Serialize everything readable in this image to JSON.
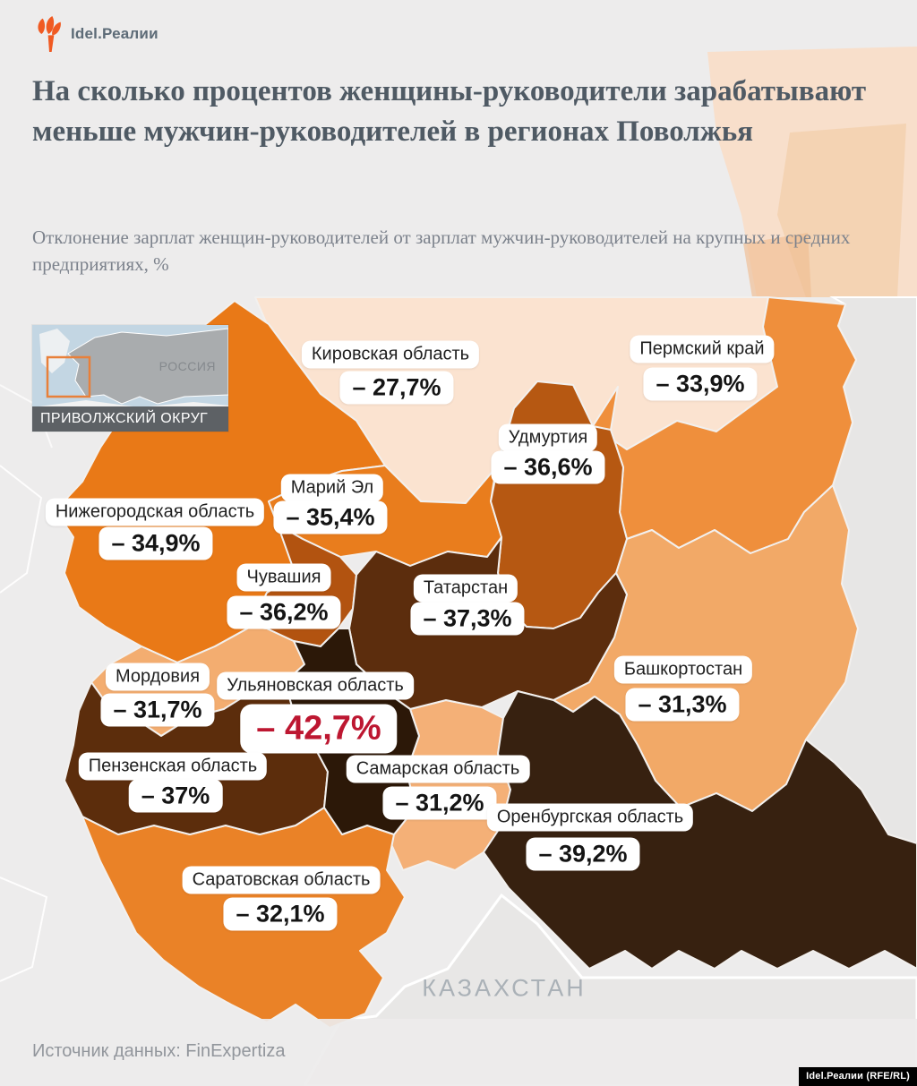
{
  "brand": {
    "logo_text": "Idel.Реалии",
    "torch_color": "#f05a22"
  },
  "header": {
    "title": "На сколько процентов женщины-руководители зарабатывают меньше мужчин-руководителей в регионах Поволжья",
    "subtitle": "Отклонение зарплат женщин-руководителей от зарплат мужчин-руководителей на крупных и средних предприятиях, %"
  },
  "inset_map": {
    "country_label": "РОССИЯ",
    "caption": "ПРИВОЛЖСКИЙ ОКРУГ",
    "highlight_box_color": "#e8803a"
  },
  "map": {
    "neighbor_label": "КАЗАХСТАН",
    "background_color": "#edecec",
    "neighbor_fill": "#e7e6e5",
    "regions": [
      {
        "id": "kirov",
        "name": "Кировская область",
        "value": "– 27,7%",
        "color": "#fbe3d0"
      },
      {
        "id": "perm",
        "name": "Пермский край",
        "value": "– 33,9%",
        "color": "#ef8f3c"
      },
      {
        "id": "udmurtia",
        "name": "Удмуртия",
        "value": "– 36,6%",
        "color": "#b65812"
      },
      {
        "id": "mariel",
        "name": "Марий Эл",
        "value": "– 35,4%",
        "color": "#e97d1d"
      },
      {
        "id": "nizhny",
        "name": "Нижегородская область",
        "value": "– 34,9%",
        "color": "#e97917"
      },
      {
        "id": "chuvashia",
        "name": "Чувашия",
        "value": "– 36,2%",
        "color": "#b25310"
      },
      {
        "id": "tatarstan",
        "name": "Татарстан",
        "value": "– 37,3%",
        "color": "#5c2d0d"
      },
      {
        "id": "mordovia",
        "name": "Мордовия",
        "value": "– 31,7%",
        "color": "#f3ad70"
      },
      {
        "id": "ulyanovsk",
        "name": "Ульяновская область",
        "value": "– 42,7%",
        "color": "#2c1808",
        "highlight": true,
        "value_color": "#bd1731"
      },
      {
        "id": "bashkortostan",
        "name": "Башкортостан",
        "value": "– 31,3%",
        "color": "#f2a967"
      },
      {
        "id": "penza",
        "name": "Пензенская область",
        "value": "– 37%",
        "color": "#5c2d0c"
      },
      {
        "id": "samara",
        "name": "Самарская область",
        "value": "– 31,2%",
        "color": "#f4b077"
      },
      {
        "id": "orenburg",
        "name": "Оренбургская область",
        "value": "– 39,2%",
        "color": "#372110"
      },
      {
        "id": "saratov",
        "name": "Саратовская область",
        "value": "– 32,1%",
        "color": "#ea8227"
      }
    ]
  },
  "footer": {
    "source": "Источник данных: FinExpertiza",
    "credit_badge": "Idel.Реалии (RFE/RL)"
  }
}
